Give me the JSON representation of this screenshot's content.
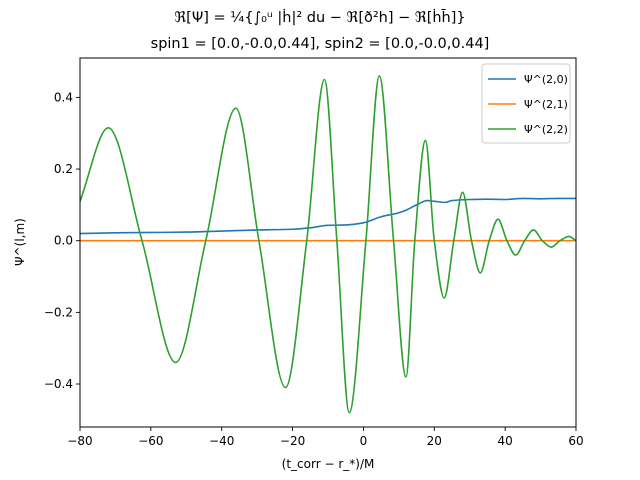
{
  "chart_data": {
    "type": "line",
    "title_line1": "ℜ[Ψ] = ¼{∫₀ᵘ |ḣ|² du − ℜ[ð²h] − ℜ[ḣh̄]}",
    "title_line2": "spin1 = [0.0,-0.0,0.44], spin2 = [0.0,-0.0,0.44]",
    "xlabel": "(t_corr − r_*)/M",
    "ylabel": "Ψ^(l,m)",
    "xlim": [
      -80,
      60
    ],
    "ylim": [
      -0.52,
      0.51
    ],
    "xticks": [
      -80,
      -60,
      -40,
      -20,
      0,
      20,
      40,
      60
    ],
    "xtick_labels": [
      "−80",
      "−60",
      "−40",
      "−20",
      "0",
      "20",
      "40",
      "60"
    ],
    "yticks": [
      -0.4,
      -0.2,
      0.0,
      0.2,
      0.4
    ],
    "ytick_labels": [
      "−0.4",
      "−0.2",
      "0.0",
      "0.2",
      "0.4"
    ],
    "grid": false,
    "legend_position": "top-right",
    "series": [
      {
        "name": "Ψ^(2,0)",
        "color": "#1f77b4",
        "x": [
          -80,
          -70,
          -60,
          -50,
          -40,
          -30,
          -20,
          -15,
          -10,
          -5,
          0,
          5,
          10,
          12,
          15,
          18,
          20,
          23,
          25,
          30,
          35,
          40,
          45,
          50,
          55,
          60
        ],
        "y": [
          0.02,
          0.022,
          0.023,
          0.024,
          0.027,
          0.03,
          0.032,
          0.036,
          0.043,
          0.044,
          0.05,
          0.067,
          0.078,
          0.085,
          0.1,
          0.112,
          0.11,
          0.107,
          0.112,
          0.115,
          0.116,
          0.115,
          0.118,
          0.117,
          0.118,
          0.118
        ]
      },
      {
        "name": "Ψ^(2,1)",
        "color": "#ff7f0e",
        "x": [
          -80,
          60
        ],
        "y": [
          0.0,
          0.0
        ]
      },
      {
        "name": "Ψ^(2,2)",
        "color": "#2ca02c",
        "x": [
          -80,
          -72,
          -62.5,
          -53,
          -44.5,
          -36,
          -29.5,
          -22,
          -16,
          -11,
          -7.5,
          -4,
          0.7,
          4.5,
          8.5,
          12,
          14.5,
          17.5,
          20,
          22.8,
          25.5,
          28,
          30.5,
          33,
          35.5,
          38,
          40.5,
          43,
          45.5,
          48,
          50.5,
          53,
          55.5,
          58,
          60
        ],
        "y": [
          0.11,
          0.315,
          0.0,
          -0.34,
          0.0,
          0.37,
          0.0,
          -0.41,
          0.0,
          0.45,
          0.0,
          -0.48,
          0.0,
          0.46,
          0.0,
          -0.38,
          0.0,
          0.28,
          0.0,
          -0.16,
          0.0,
          0.135,
          0.0,
          -0.09,
          0.0,
          0.06,
          0.0,
          -0.04,
          0.0,
          0.03,
          0.0,
          -0.018,
          0.0,
          0.012,
          0.0
        ]
      }
    ]
  }
}
